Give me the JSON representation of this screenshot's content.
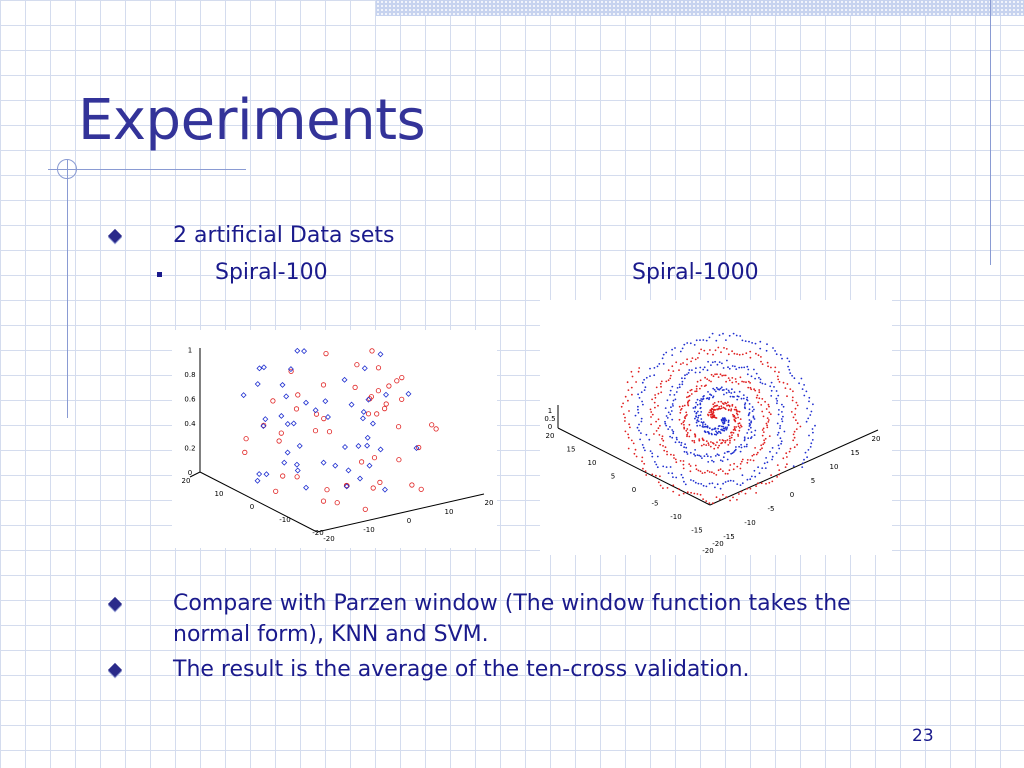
{
  "slide": {
    "title": "Experiments",
    "page_number": "23"
  },
  "bullets": {
    "b1": "2 artificial Data sets",
    "sub_left": "Spiral-100",
    "sub_right": "Spiral-1000",
    "b2_line1": "Compare with Parzen window (The window function takes the",
    "b2_line2": "normal form), KNN and SVM.",
    "b3": "The result is the average of the ten-cross validation."
  },
  "colors": {
    "title": "#333399",
    "text": "#1a1a8c",
    "class_red": "#e02020",
    "class_blue": "#2030d0"
  },
  "chart_data": [
    {
      "type": "scatter",
      "title": "",
      "axes": {
        "z_ticks": [
          "0",
          "0.2",
          "0.4",
          "0.6",
          "0.8",
          "1"
        ],
        "y_ticks": [
          "20",
          "10",
          "0",
          "-10",
          "-20"
        ],
        "x_ticks": [
          "-20",
          "-10",
          "0",
          "10",
          "20"
        ]
      },
      "series": [
        {
          "marker": "circle",
          "color": "#e02020",
          "points": 50
        },
        {
          "marker": "diamond",
          "color": "#2030d0",
          "points": 50
        }
      ]
    },
    {
      "type": "scatter",
      "title": "",
      "axes": {
        "z_ticks": [
          "0",
          "0.5",
          "1"
        ],
        "y_ticks": [
          "20",
          "15",
          "10",
          "5",
          "0",
          "-5",
          "-10",
          "-15",
          "-20"
        ],
        "x_ticks": [
          "-20",
          "-15",
          "-10",
          "-5",
          "0",
          "5",
          "10",
          "15",
          "20"
        ]
      },
      "series": [
        {
          "marker": "dot",
          "color": "#e02020",
          "points": 500
        },
        {
          "marker": "dot",
          "color": "#2030d0",
          "points": 500
        }
      ]
    }
  ]
}
